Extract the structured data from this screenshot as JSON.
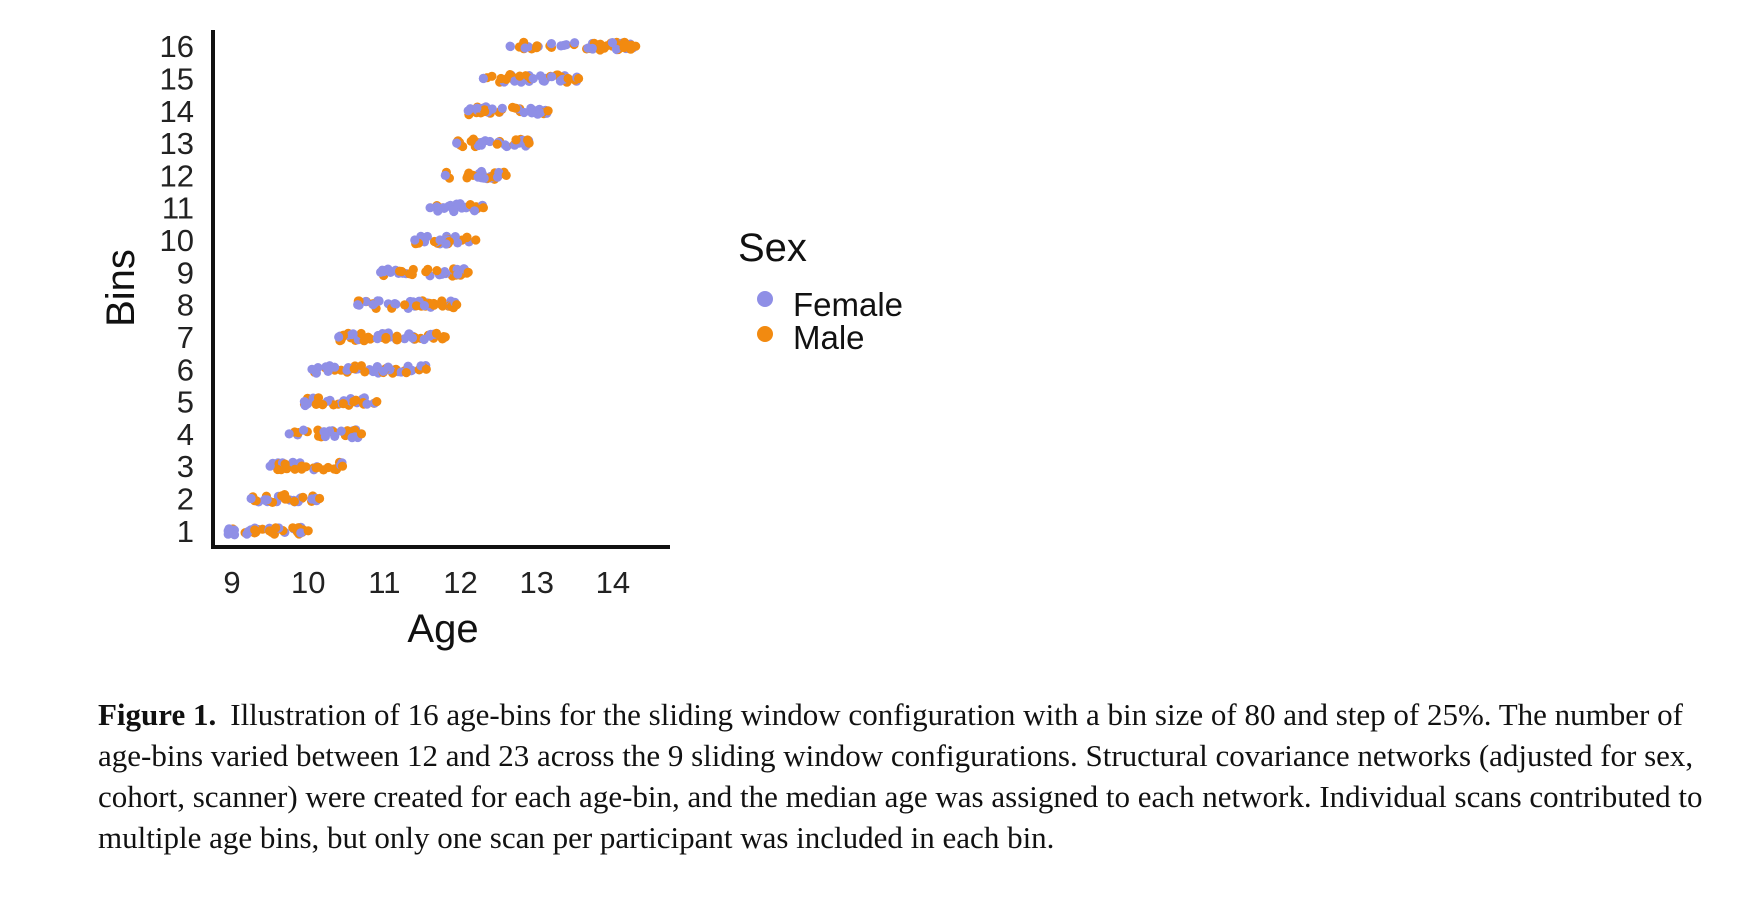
{
  "chart_data": {
    "type": "scatter",
    "xlabel": "Age",
    "ylabel": "Bins",
    "xlim": [
      8.75,
      14.75
    ],
    "ylim": [
      0.5,
      16.5
    ],
    "xticks": [
      9,
      10,
      11,
      12,
      13,
      14
    ],
    "yticks": [
      1,
      2,
      3,
      4,
      5,
      6,
      7,
      8,
      9,
      10,
      11,
      12,
      13,
      14,
      15,
      16
    ],
    "grid": false,
    "legend": {
      "title": "Sex",
      "position": "right",
      "entries": [
        {
          "label": "Female",
          "color": "#8f8fe6"
        },
        {
          "label": "Male",
          "color": "#f28a10"
        }
      ]
    },
    "bins": [
      {
        "bin": 1,
        "age_min": 8.95,
        "age_max": 10.0
      },
      {
        "bin": 2,
        "age_min": 9.25,
        "age_max": 10.15
      },
      {
        "bin": 3,
        "age_min": 9.5,
        "age_max": 10.45
      },
      {
        "bin": 4,
        "age_min": 9.75,
        "age_max": 10.7
      },
      {
        "bin": 5,
        "age_min": 9.95,
        "age_max": 10.9
      },
      {
        "bin": 6,
        "age_min": 10.05,
        "age_max": 11.55
      },
      {
        "bin": 7,
        "age_min": 10.4,
        "age_max": 11.8
      },
      {
        "bin": 8,
        "age_min": 10.65,
        "age_max": 11.95
      },
      {
        "bin": 9,
        "age_min": 10.95,
        "age_max": 12.1
      },
      {
        "bin": 10,
        "age_min": 11.4,
        "age_max": 12.2
      },
      {
        "bin": 11,
        "age_min": 11.6,
        "age_max": 12.3
      },
      {
        "bin": 12,
        "age_min": 11.8,
        "age_max": 12.6
      },
      {
        "bin": 13,
        "age_min": 11.95,
        "age_max": 12.9
      },
      {
        "bin": 14,
        "age_min": 12.1,
        "age_max": 13.15
      },
      {
        "bin": 15,
        "age_min": 12.3,
        "age_max": 13.55
      },
      {
        "bin": 16,
        "age_min": 12.65,
        "age_max": 14.3
      }
    ]
  },
  "caption": {
    "label": "Figure 1.",
    "text": "Illustration of 16 age-bins for the sliding window configuration with a bin size of 80 and step of 25%. The number of age-bins varied between 12 and 23 across the 9 sliding window configurations. Structural covariance networks (adjusted for sex, cohort, scanner) were created for each age-bin, and the median age was assigned to each network. Individual scans contributed to multiple age bins, but only one scan per participant was included in each bin."
  }
}
